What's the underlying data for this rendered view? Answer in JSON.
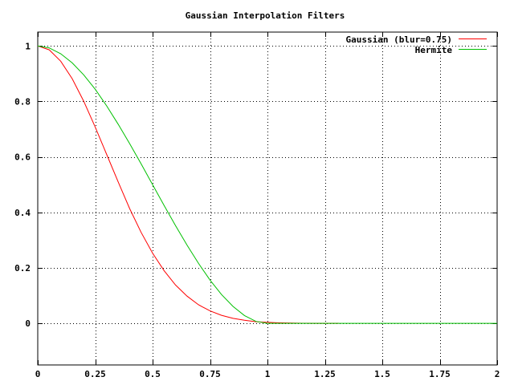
{
  "chart_data": {
    "type": "line",
    "title": "Gaussian Interpolation Filters",
    "xlabel": "",
    "ylabel": "",
    "xlim": [
      0,
      2
    ],
    "ylim": [
      -0.15,
      1.05
    ],
    "xticks": [
      0,
      0.25,
      0.5,
      0.75,
      1,
      1.25,
      1.5,
      1.75,
      2
    ],
    "xtick_labels": [
      "0",
      "0.25",
      "0.5",
      "0.75",
      "1",
      "1.25",
      "1.5",
      "1.75",
      "2"
    ],
    "yticks": [
      0,
      0.2,
      0.4,
      0.6,
      0.8,
      1
    ],
    "ytick_labels": [
      "0",
      "0.2",
      "0.4",
      "0.6",
      "0.8",
      "1"
    ],
    "grid": true,
    "legend_position": "top-right",
    "series": [
      {
        "name": "Gaussian (blur=0.75)",
        "color": "#ff0000",
        "x": [
          0,
          0.05,
          0.1,
          0.15,
          0.2,
          0.25,
          0.3,
          0.35,
          0.4,
          0.45,
          0.5,
          0.55,
          0.6,
          0.65,
          0.7,
          0.75,
          0.8,
          0.85,
          0.9,
          0.95,
          1.0,
          1.05,
          1.1,
          1.15,
          1.2,
          1.25,
          1.3,
          1.31
        ],
        "y": [
          1.0,
          0.986,
          0.945,
          0.882,
          0.801,
          0.708,
          0.609,
          0.51,
          0.414,
          0.328,
          0.253,
          0.19,
          0.138,
          0.098,
          0.067,
          0.045,
          0.029,
          0.018,
          0.011,
          0.006,
          0.0035,
          0.0019,
          0.001,
          0.0005,
          0.0002,
          0.0001,
          0.0,
          0.0
        ]
      },
      {
        "name": "Hermite",
        "color": "#00c000",
        "x": [
          0,
          0.05,
          0.1,
          0.15,
          0.2,
          0.25,
          0.3,
          0.35,
          0.4,
          0.45,
          0.5,
          0.55,
          0.6,
          0.65,
          0.7,
          0.75,
          0.8,
          0.85,
          0.9,
          0.95,
          1.0,
          1.05,
          1.1,
          1.2,
          1.3,
          1.4,
          1.5,
          1.6,
          1.7,
          1.8,
          1.9,
          2.0
        ],
        "y": [
          1.0,
          0.993,
          0.972,
          0.939,
          0.896,
          0.844,
          0.784,
          0.718,
          0.648,
          0.575,
          0.5,
          0.425,
          0.352,
          0.282,
          0.216,
          0.156,
          0.104,
          0.061,
          0.028,
          0.007,
          0.0,
          0.0,
          0.0,
          0.0,
          0.0,
          0.0,
          0.0,
          0.0,
          0.0,
          0.0,
          0.0,
          0.0
        ]
      }
    ]
  }
}
